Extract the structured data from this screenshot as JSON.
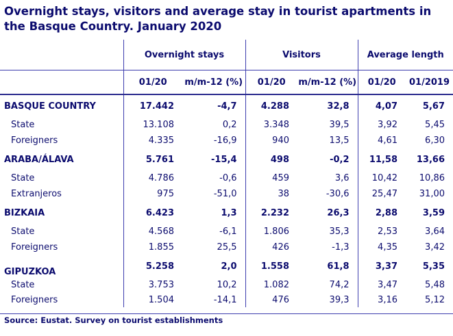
{
  "title": "Overnight stays, visitors and average stay in tourist apartments in the Basque Country. January 2020",
  "headers": {
    "group1": "Overnight stays",
    "group2": "Visitors",
    "group3": "Average length",
    "sub": [
      "01/20",
      "m/m-12 (%)",
      "01/20",
      "m/m-12 (%)",
      "01/20",
      "01/2019"
    ]
  },
  "rows": [
    {
      "label": "BASQUE COUNTRY",
      "v": [
        "17.442",
        "-4,7",
        "4.288",
        "32,8",
        "4,07",
        "5,67"
      ]
    },
    {
      "label": "State",
      "v": [
        "13.108",
        "0,2",
        "3.348",
        "39,5",
        "3,92",
        "5,45"
      ]
    },
    {
      "label": "Foreigners",
      "v": [
        "4.335",
        "-16,9",
        "940",
        "13,5",
        "4,61",
        "6,30"
      ]
    },
    {
      "label": "ARABA/ÁLAVA",
      "v": [
        "5.761",
        "-15,4",
        "498",
        "-0,2",
        "11,58",
        "13,66"
      ]
    },
    {
      "label": "State",
      "v": [
        "4.786",
        "-0,6",
        "459",
        "3,6",
        "10,42",
        "10,86"
      ]
    },
    {
      "label": "Extranjeros",
      "v": [
        "975",
        "-51,0",
        "38",
        "-30,6",
        "25,47",
        "31,00"
      ]
    },
    {
      "label": "BIZKAIA",
      "v": [
        "6.423",
        "1,3",
        "2.232",
        "26,3",
        "2,88",
        "3,59"
      ]
    },
    {
      "label": "State",
      "v": [
        "4.568",
        "-6,1",
        "1.806",
        "35,3",
        "2,53",
        "3,64"
      ]
    },
    {
      "label": "Foreigners",
      "v": [
        "1.855",
        "25,5",
        "426",
        "-1,3",
        "4,35",
        "3,42"
      ]
    },
    {
      "label": "GIPUZKOA",
      "v": [
        "5.258",
        "2,0",
        "1.558",
        "61,8",
        "3,37",
        "5,35"
      ]
    },
    {
      "label": "State",
      "v": [
        "3.753",
        "10,2",
        "1.082",
        "74,2",
        "3,47",
        "5,48"
      ]
    },
    {
      "label": "Foreigners",
      "v": [
        "1.504",
        "-14,1",
        "476",
        "39,3",
        "3,16",
        "5,12"
      ]
    }
  ],
  "source": "Source: Eustat. Survey on tourist establishments"
}
